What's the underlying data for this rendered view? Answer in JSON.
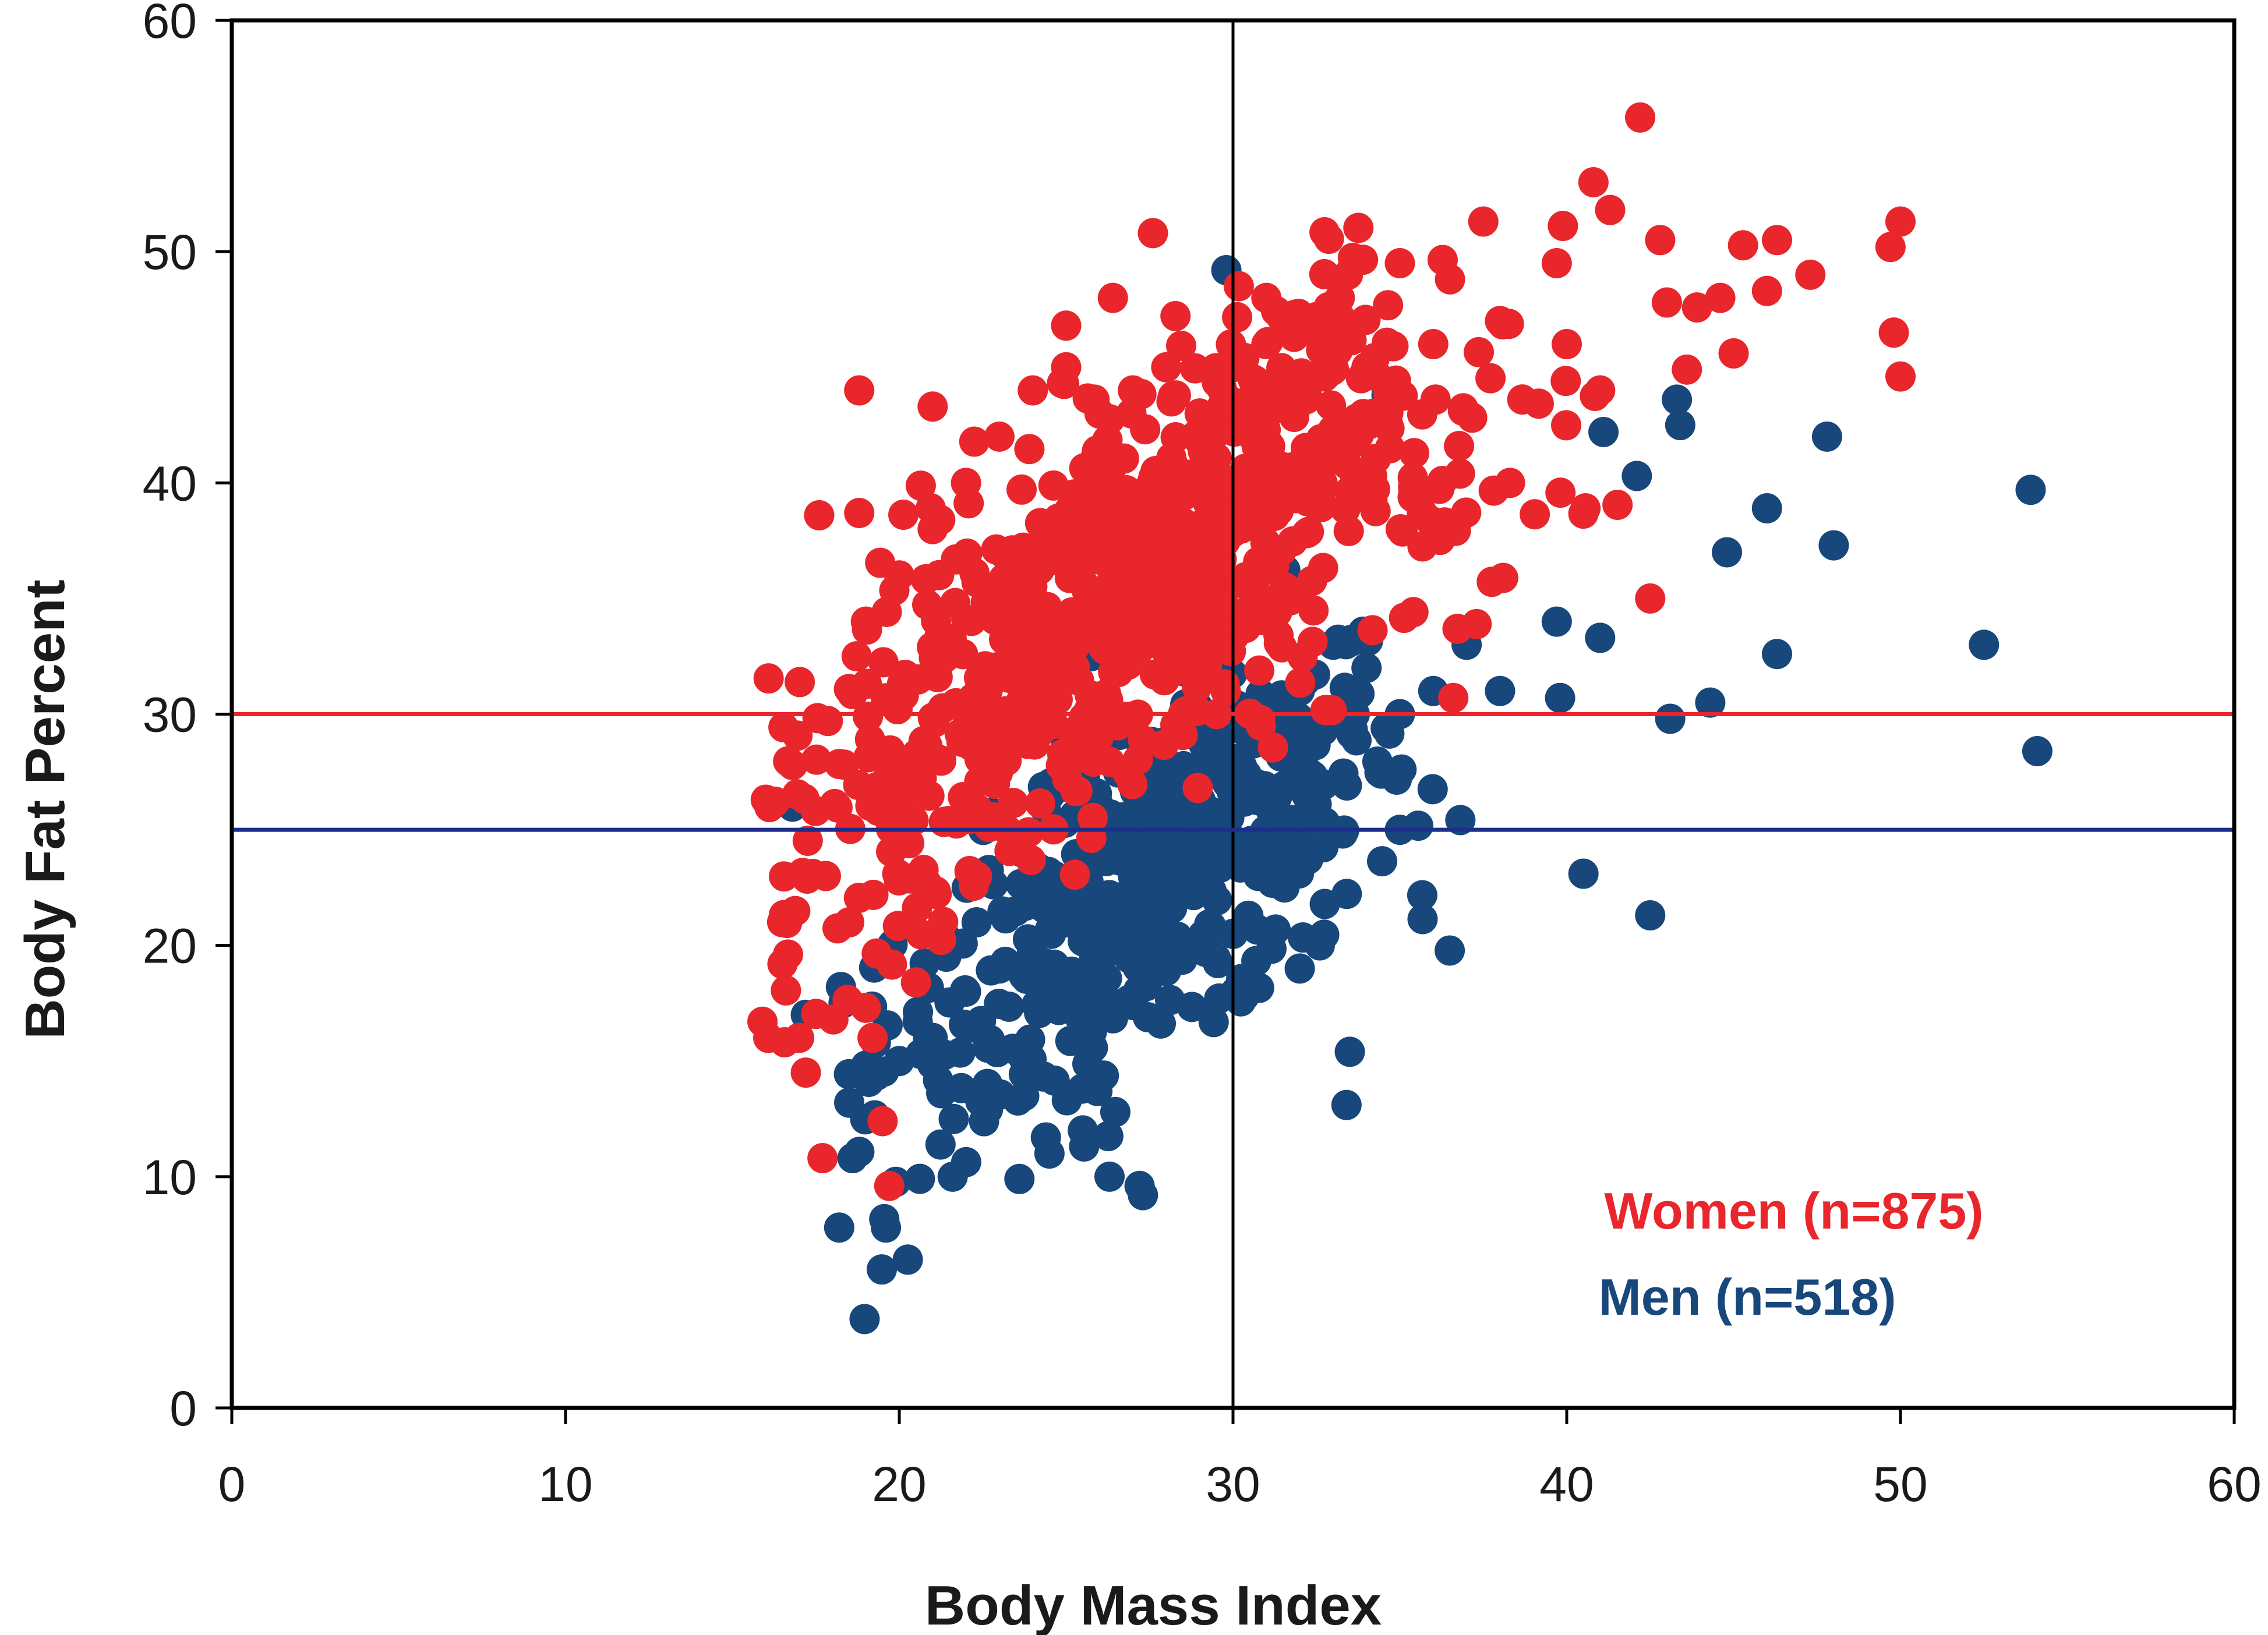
{
  "chart_data": {
    "type": "scatter",
    "title": "",
    "xlabel": "Body Mass Index",
    "ylabel": "Body Fat Percent",
    "xlim": [
      0,
      60
    ],
    "ylim": [
      0,
      60
    ],
    "x_ticks": [
      0,
      10,
      20,
      30,
      40,
      50,
      60
    ],
    "y_ticks": [
      0,
      10,
      20,
      30,
      40,
      50,
      60
    ],
    "grid": false,
    "reference_lines": [
      {
        "name": "bmi-30-line",
        "orientation": "vertical",
        "value": 30,
        "color": "#000000"
      },
      {
        "name": "women-threshold-line",
        "orientation": "horizontal",
        "value": 30,
        "color": "#e8262b"
      },
      {
        "name": "men-threshold-line",
        "orientation": "horizontal",
        "value": 25,
        "color": "#1c2e8c"
      }
    ],
    "series": [
      {
        "name": "Women",
        "label": "Women (n=875)",
        "color": "#e8262b",
        "n": 875,
        "sample_points": [
          [
            42.2,
            55.8
          ],
          [
            40.8,
            53.0
          ],
          [
            41.3,
            51.8
          ],
          [
            42.8,
            50.5
          ],
          [
            37.5,
            51.3
          ],
          [
            50.0,
            51.3
          ],
          [
            46.3,
            50.5
          ],
          [
            47.3,
            49.0
          ],
          [
            49.7,
            50.2
          ],
          [
            49.8,
            46.5
          ],
          [
            50.0,
            44.6
          ],
          [
            27.6,
            50.8
          ],
          [
            35.0,
            49.5
          ],
          [
            39.7,
            49.5
          ],
          [
            44.6,
            48.0
          ],
          [
            46.0,
            48.3
          ],
          [
            33.2,
            48.0
          ],
          [
            31.0,
            48.0
          ],
          [
            25.0,
            46.8
          ],
          [
            26.4,
            48.0
          ],
          [
            18.8,
            44.0
          ],
          [
            21.0,
            43.3
          ],
          [
            17.6,
            38.6
          ],
          [
            18.8,
            38.7
          ],
          [
            16.0,
            26.3
          ],
          [
            15.9,
            16.7
          ],
          [
            16.5,
            19.2
          ],
          [
            17.7,
            10.8
          ],
          [
            19.7,
            9.6
          ],
          [
            42.5,
            35.0
          ],
          [
            36.6,
            30.7
          ],
          [
            38.3,
            40.0
          ],
          [
            36.8,
            40.4
          ],
          [
            43.0,
            47.8
          ],
          [
            45.0,
            45.6
          ],
          [
            43.6,
            44.9
          ],
          [
            17.0,
            16.0
          ],
          [
            17.2,
            14.5
          ],
          [
            16.8,
            27.8
          ],
          [
            17.8,
            23.0
          ],
          [
            18.5,
            21.0
          ],
          [
            19.0,
            17.3
          ],
          [
            19.2,
            16.0
          ],
          [
            19.5,
            12.4
          ],
          [
            20.5,
            18.4
          ],
          [
            19.0,
            34.0
          ],
          [
            20.0,
            36.0
          ],
          [
            21.0,
            38.0
          ],
          [
            22.0,
            40.0
          ],
          [
            23.0,
            42.0
          ],
          [
            24.0,
            44.0
          ],
          [
            25.0,
            45.0
          ],
          [
            26.0,
            43.0
          ],
          [
            27.0,
            44.0
          ],
          [
            28.0,
            45.0
          ],
          [
            29.0,
            43.0
          ],
          [
            30.0,
            45.0
          ],
          [
            31.0,
            46.0
          ],
          [
            32.0,
            44.0
          ],
          [
            33.0,
            46.0
          ],
          [
            34.0,
            45.0
          ],
          [
            36.0,
            46.0
          ],
          [
            38.0,
            47.0
          ],
          [
            40.0,
            46.0
          ],
          [
            41.0,
            44.0
          ]
        ]
      },
      {
        "name": "Men",
        "label": "Men (n=518)",
        "color": "#17477b",
        "n": 518,
        "sample_points": [
          [
            29.8,
            49.2
          ],
          [
            34.6,
            43.8
          ],
          [
            41.1,
            42.2
          ],
          [
            43.3,
            43.6
          ],
          [
            43.4,
            42.5
          ],
          [
            47.8,
            42.0
          ],
          [
            53.9,
            39.7
          ],
          [
            46.0,
            38.9
          ],
          [
            44.8,
            37.0
          ],
          [
            48.0,
            37.3
          ],
          [
            42.1,
            40.3
          ],
          [
            41.0,
            33.3
          ],
          [
            46.3,
            32.6
          ],
          [
            52.5,
            33.0
          ],
          [
            54.1,
            28.4
          ],
          [
            44.3,
            30.5
          ],
          [
            43.1,
            29.8
          ],
          [
            39.8,
            30.7
          ],
          [
            39.7,
            34.0
          ],
          [
            40.5,
            23.1
          ],
          [
            42.5,
            21.3
          ],
          [
            33.5,
            15.4
          ],
          [
            33.4,
            13.1
          ],
          [
            18.2,
            7.8
          ],
          [
            19.6,
            7.8
          ],
          [
            27.3,
            9.2
          ],
          [
            27.2,
            9.6
          ],
          [
            23.6,
            9.9
          ],
          [
            21.6,
            10.0
          ],
          [
            26.3,
            10.0
          ],
          [
            16.8,
            26.0
          ],
          [
            17.2,
            17.0
          ],
          [
            18.5,
            13.2
          ],
          [
            18.6,
            10.8
          ],
          [
            19.0,
            14.8
          ],
          [
            20.0,
            15.0
          ],
          [
            21.0,
            16.0
          ],
          [
            22.0,
            18.0
          ],
          [
            23.0,
            19.0
          ],
          [
            24.0,
            20.0
          ],
          [
            25.0,
            21.0
          ],
          [
            26.0,
            22.0
          ],
          [
            27.0,
            23.0
          ],
          [
            28.0,
            24.0
          ],
          [
            29.0,
            26.0
          ],
          [
            30.0,
            28.0
          ],
          [
            31.0,
            30.0
          ],
          [
            32.0,
            31.0
          ],
          [
            33.0,
            33.0
          ],
          [
            34.0,
            32.0
          ],
          [
            35.0,
            30.0
          ],
          [
            36.0,
            31.0
          ],
          [
            37.0,
            33.0
          ],
          [
            38.0,
            31.0
          ],
          [
            35.0,
            25.0
          ],
          [
            32.6,
            20.0
          ],
          [
            32.0,
            19.0
          ],
          [
            30.0,
            20.5
          ],
          [
            25.5,
            12.0
          ],
          [
            24.5,
            11.0
          ]
        ]
      }
    ],
    "legend": [
      {
        "label": "Women (n=875)",
        "color": "#e8262b"
      },
      {
        "label": "Men (n=518)",
        "color": "#17477b"
      }
    ],
    "legend_position": "bottom-right"
  }
}
